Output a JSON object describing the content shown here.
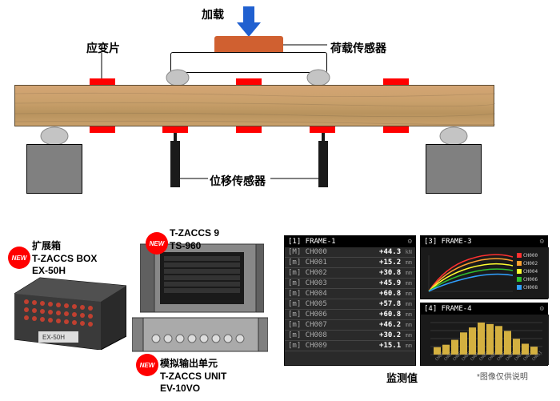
{
  "labels": {
    "load": "加载",
    "strain": "应变片",
    "loadcell": "荷载传感器",
    "disp": "位移传感器",
    "monitor": "监测值",
    "note": "*图像仅供说明"
  },
  "products": {
    "p1": {
      "l1": "扩展箱",
      "l2": "T-ZACCS BOX",
      "l3": "EX-50H"
    },
    "p2": {
      "l1": "T-ZACCS 9",
      "l2": "TS-960"
    },
    "p3": {
      "l1": "模拟输出单元",
      "l2": "T-ZACCS UNIT",
      "l3": "EV-10VO"
    }
  },
  "colors": {
    "beam1": "#d4a574",
    "beam2": "#b8935e",
    "beam3": "#c9a06b",
    "red": "#ff0000",
    "blue": "#2060d0",
    "orange": "#d06030",
    "gray": "#888",
    "dgray": "#606060",
    "support": "#808080",
    "disp_sensor": "#1a1a1a"
  },
  "monitor": {
    "f1": {
      "title": "[1] FRAME-1",
      "rows": [
        [
          "[M] CH000",
          "+44.3",
          "kN"
        ],
        [
          "[m] CH001",
          "+15.2",
          "mm"
        ],
        [
          "[m] CH002",
          "+30.8",
          "mm"
        ],
        [
          "[m] CH003",
          "+45.9",
          "mm"
        ],
        [
          "[m] CH004",
          "+60.8",
          "mm"
        ],
        [
          "[m] CH005",
          "+57.8",
          "mm"
        ],
        [
          "[m] CH006",
          "+60.8",
          "mm"
        ],
        [
          "[m] CH007",
          "+46.2",
          "mm"
        ],
        [
          "[m] CH008",
          "+30.2",
          "mm"
        ],
        [
          "[m] CH009",
          "+15.1",
          "mm"
        ]
      ]
    },
    "f3": {
      "title": "[3] FRAME-3",
      "legend": [
        "CH000",
        "CH002",
        "CH004",
        "CH006",
        "CH008"
      ],
      "colors": [
        "#ff3030",
        "#ffa030",
        "#ffff30",
        "#30c030",
        "#30a0ff"
      ]
    },
    "f4": {
      "title": "[4] FRAME-4",
      "bars": [
        15,
        20,
        30,
        45,
        55,
        65,
        62,
        58,
        48,
        32,
        22,
        16
      ]
    }
  }
}
